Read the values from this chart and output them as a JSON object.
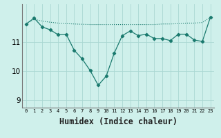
{
  "x": [
    0,
    1,
    2,
    3,
    4,
    5,
    6,
    7,
    8,
    9,
    10,
    11,
    12,
    13,
    14,
    15,
    16,
    17,
    18,
    19,
    20,
    21,
    22,
    23
  ],
  "line_markers": [
    11.62,
    11.82,
    11.52,
    11.42,
    11.25,
    11.27,
    10.72,
    10.42,
    10.02,
    9.52,
    9.83,
    10.62,
    11.22,
    11.38,
    11.22,
    11.27,
    11.12,
    11.12,
    11.05,
    11.27,
    11.27,
    11.07,
    11.02,
    11.85
  ],
  "line_flat": [
    11.62,
    11.78,
    11.72,
    11.68,
    11.65,
    11.63,
    11.62,
    11.61,
    11.6,
    11.6,
    11.6,
    11.6,
    11.6,
    11.6,
    11.6,
    11.6,
    11.6,
    11.62,
    11.62,
    11.63,
    11.65,
    11.65,
    11.67,
    11.85
  ],
  "bg_color": "#cff0eb",
  "grid_color": "#aad8d3",
  "line_color": "#1a7a6e",
  "ylim": [
    8.75,
    12.3
  ],
  "yticks": [
    9,
    10,
    11
  ],
  "xlim": [
    -0.5,
    23.5
  ],
  "xlabel": "Humidex (Indice chaleur)",
  "xlabel_fontsize": 8.5
}
